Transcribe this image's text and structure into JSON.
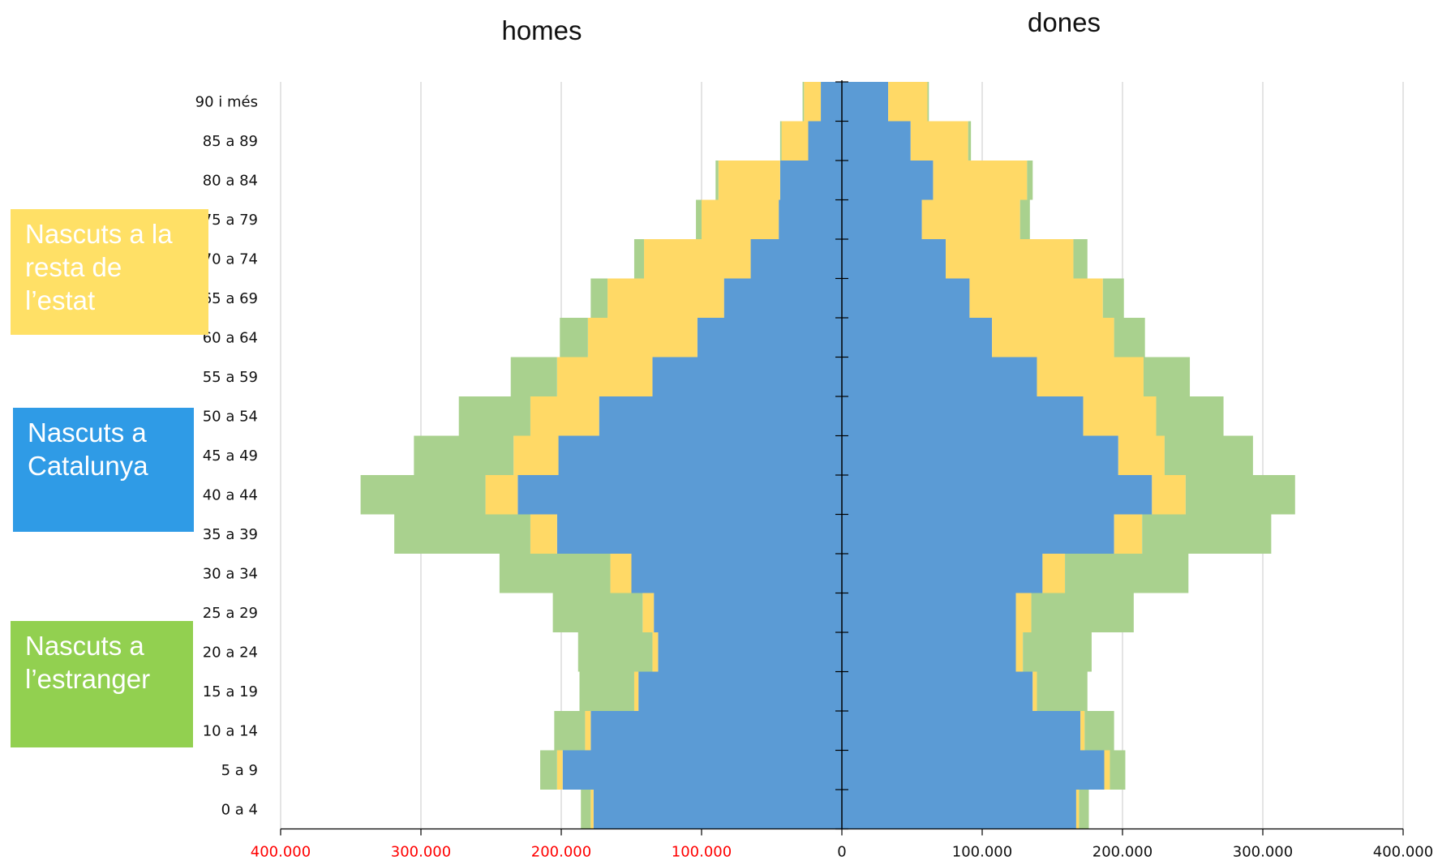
{
  "chart_data": {
    "type": "population-pyramid",
    "left_title": "homes",
    "right_title": "dones",
    "xlim": [
      -400000,
      400000
    ],
    "x_ticks": [
      -400000,
      -300000,
      -200000,
      -100000,
      0,
      100000,
      200000,
      300000,
      400000
    ],
    "x_tick_labels": [
      "400.000",
      "300.000",
      "200.000",
      "100.000",
      "0",
      "100.000",
      "200.000",
      "300.000",
      "400.000"
    ],
    "categories": [
      "90 i més",
      "85 a 89",
      "80 a 84",
      "75 a 79",
      "70 a 74",
      "65 a 69",
      "60 a 64",
      "55 a 59",
      "50 a 54",
      "45 a 49",
      "40 a 44",
      "35 a 39",
      "30 a 34",
      "25 a 29",
      "20 a 24",
      "15 a 19",
      "10 a 14",
      "5 a 9",
      "0 a 4"
    ],
    "series": [
      {
        "name": "Nascuts a Catalunya",
        "color": "#5b9bd5",
        "homes": [
          15000,
          24000,
          44000,
          45000,
          65000,
          84000,
          103000,
          135000,
          173000,
          202000,
          231000,
          203000,
          150000,
          134000,
          131000,
          145000,
          179000,
          199000,
          177000
        ],
        "dones": [
          33000,
          49000,
          65000,
          57000,
          74000,
          91000,
          107000,
          139000,
          172000,
          197000,
          221000,
          194000,
          143000,
          124000,
          124000,
          136000,
          170000,
          187000,
          167000
        ]
      },
      {
        "name": "Nascuts a la resta de l’estat",
        "color": "#ffd966",
        "homes": [
          12000,
          19000,
          44000,
          55000,
          76000,
          83000,
          78000,
          68000,
          49000,
          32000,
          23000,
          19000,
          15000,
          8000,
          4000,
          3000,
          4000,
          4000,
          2000
        ],
        "dones": [
          28000,
          41000,
          67000,
          70000,
          91000,
          95000,
          87000,
          76000,
          52000,
          33000,
          24000,
          20000,
          16000,
          11000,
          5000,
          3000,
          3000,
          4000,
          2000
        ]
      },
      {
        "name": "Nascuts a l’estranger",
        "color": "#a9d18e",
        "homes": [
          1000,
          1000,
          2000,
          4000,
          7000,
          12000,
          20000,
          33000,
          51000,
          71000,
          89000,
          97000,
          79000,
          64000,
          53000,
          39000,
          22000,
          12000,
          7000
        ],
        "dones": [
          1000,
          2000,
          4000,
          7000,
          10000,
          15000,
          22000,
          33000,
          48000,
          63000,
          78000,
          92000,
          88000,
          73000,
          49000,
          36000,
          21000,
          11000,
          7000
        ]
      }
    ],
    "tick_label_colors": {
      "negative": "#ff0000",
      "zero_and_positive": "#111111"
    },
    "grid": true
  },
  "legend": [
    {
      "label": "Nascuts a la\nresta de\nl’estat",
      "color": "#ffe066"
    },
    {
      "label": "Nascuts a\nCatalunya",
      "color": "#2f9be6"
    },
    {
      "label": "Nascuts a\nl’estranger",
      "color": "#92d050"
    }
  ]
}
